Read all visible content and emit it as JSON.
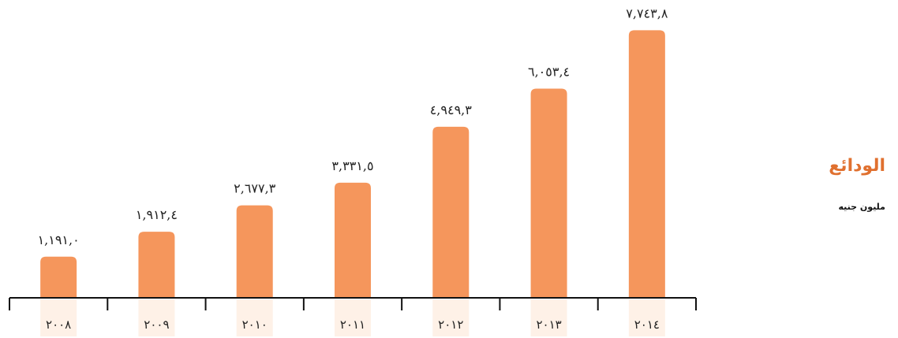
{
  "sidebar": {
    "title": "الودائع",
    "unit": "مليون جنيه"
  },
  "colors": {
    "bar": "#F5965C",
    "category_highlight": "#FEF1E7",
    "title": "#E0702F",
    "axis": "#111111"
  },
  "chart_data": {
    "type": "bar",
    "title": "الودائع",
    "ylabel": "مليون جنيه",
    "xlabel": "",
    "categories": [
      "٢٠٠٨",
      "٢٠٠٩",
      "٢٠١٠",
      "٢٠١١",
      "٢٠١٢",
      "٢٠١٣",
      "٢٠١٤"
    ],
    "values": [
      1191.0,
      1912.4,
      2677.3,
      3331.5,
      4949.3,
      6053.4,
      7743.8
    ],
    "value_labels": [
      "١,١٩١,٠",
      "١,٩١٢,٤",
      "٢,٦٧٧,٣",
      "٣,٣٣١,٥",
      "٤,٩٤٩,٣",
      "٦,٠٥٣,٤",
      "٧,٧٤٣,٨"
    ],
    "ylim": [
      0,
      8000
    ],
    "grid": false,
    "legend": "none"
  }
}
